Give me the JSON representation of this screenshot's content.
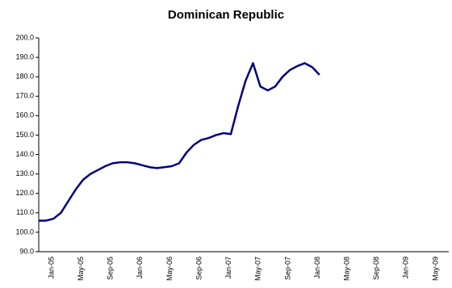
{
  "chart_data": {
    "type": "line",
    "title": "Dominican Republic",
    "categories": [
      "Jan-05",
      null,
      null,
      null,
      "May-05",
      null,
      null,
      null,
      "Sep-05",
      null,
      null,
      null,
      "Jan-06",
      null,
      null,
      null,
      "May-06",
      null,
      null,
      null,
      "Sep-06",
      null,
      null,
      null,
      "Jan-07",
      null,
      null,
      null,
      "May-07",
      null,
      null,
      null,
      "Sep-07",
      null,
      null,
      null,
      "Jan-08",
      null,
      null,
      null,
      "May-08",
      null,
      null,
      null,
      "Sep-08",
      null,
      null,
      null,
      "Jan-09",
      null,
      null,
      null,
      "May-09"
    ],
    "series": [
      {
        "name": "Dominican Republic",
        "color": "#000080",
        "values": [
          106,
          106,
          107,
          110,
          116,
          122,
          127,
          130,
          132,
          134,
          135.5,
          136,
          136,
          135.5,
          134.5,
          133.5,
          133,
          133.5,
          134,
          135.5,
          141,
          145,
          147.5,
          148.5,
          150,
          151,
          150.5,
          165,
          178,
          187,
          175,
          173,
          175,
          180,
          183.5,
          185.5,
          187,
          185,
          181,
          null,
          null,
          null,
          null,
          null,
          null,
          null,
          null,
          null,
          null,
          null,
          null,
          null,
          null
        ]
      }
    ],
    "ylim": [
      90,
      200
    ],
    "yticks": [
      {
        "value": 90,
        "label": "90.0"
      },
      {
        "value": 100,
        "label": "100.0"
      },
      {
        "value": 110,
        "label": "110.0"
      },
      {
        "value": 120,
        "label": "120.0"
      },
      {
        "value": 130,
        "label": "130.0"
      },
      {
        "value": 140,
        "label": "140.0"
      },
      {
        "value": 150,
        "label": "150.0"
      },
      {
        "value": 160,
        "label": "160.0"
      },
      {
        "value": 170,
        "label": "170.0"
      },
      {
        "value": 180,
        "label": "180.0"
      },
      {
        "value": 190,
        "label": "190.0"
      },
      {
        "value": 200,
        "label": "200.0"
      }
    ]
  }
}
